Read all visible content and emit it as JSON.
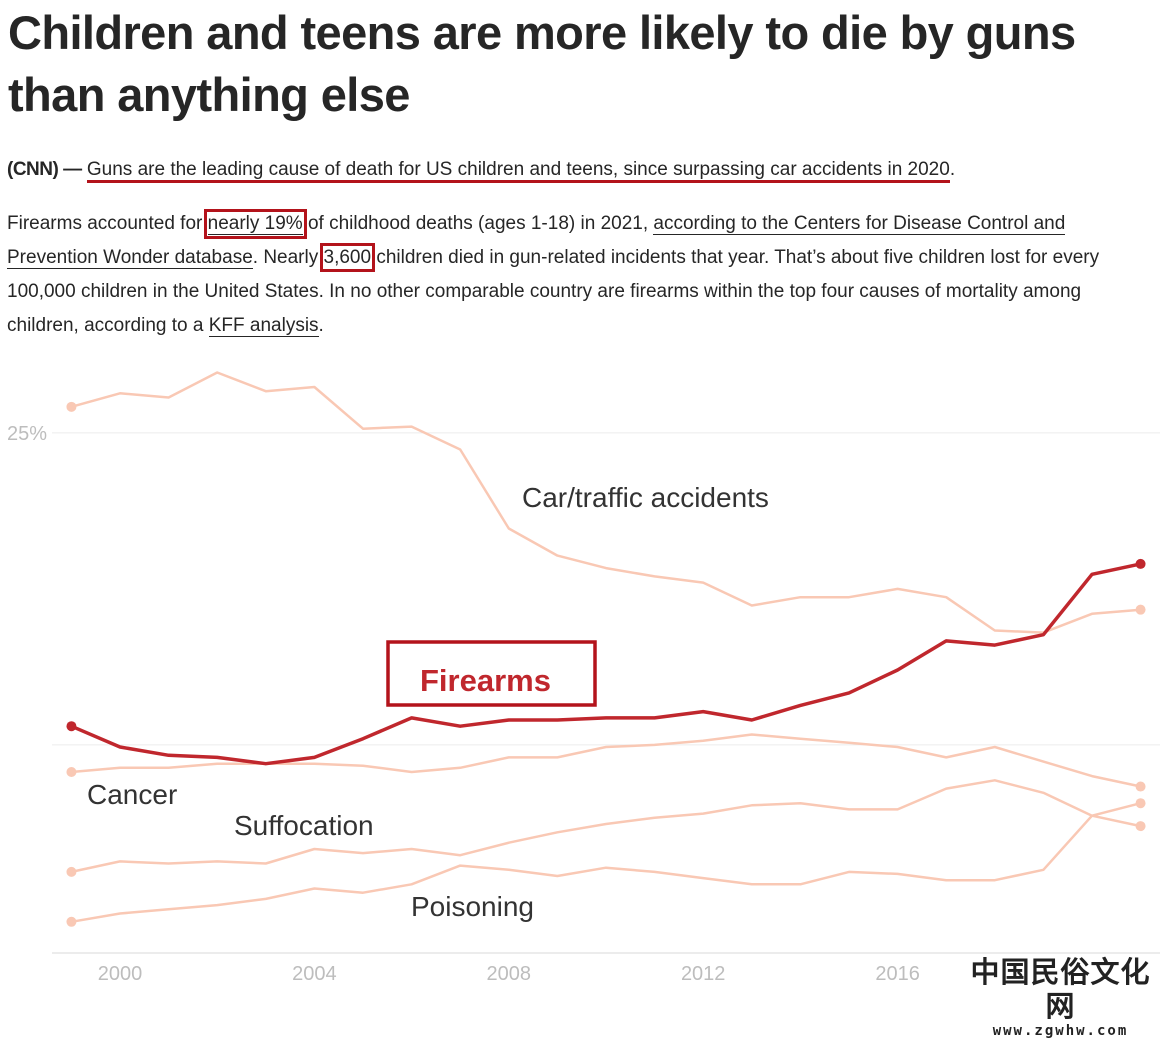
{
  "article": {
    "title": "Children and teens are more likely to die by guns than anything else",
    "paragraphs": [
      [
        "(CNN) —",
        "Guns are the leading cause of death for US children and teens, since surpassing car accidents in 2020",
        "."
      ],
      [
        "Firearms accounted for",
        "nearly 19%",
        "of childhood deaths (ages 1-18) in 2021,",
        "according to the Centers for Disease Control and Prevention Wonder database",
        ". Nearly",
        "3,600",
        "children died in gun-related incidents that year. That’s about five children lost for every 100,000 children in the United States. In no other comparable country are firearms within the top four causes of mortality among children, according to a",
        "KFF analysis",
        "."
      ]
    ]
  },
  "chart_data": {
    "type": "line",
    "x": [
      1999,
      2000,
      2001,
      2002,
      2003,
      2004,
      2005,
      2006,
      2007,
      2008,
      2009,
      2010,
      2011,
      2012,
      2013,
      2014,
      2015,
      2016,
      2017,
      2018,
      2019,
      2020,
      2021
    ],
    "xlim": [
      1998.6,
      2021.4
    ],
    "xticks": [
      2000,
      2004,
      2008,
      2012,
      2016
    ],
    "ylim": [
      0,
      28.5
    ],
    "yticks": [
      {
        "value": 10,
        "label": null
      },
      {
        "value": 25,
        "label": "25%"
      }
    ],
    "grid": true,
    "highlight": "Firearms",
    "series": [
      {
        "name": "Car/traffic accidents",
        "color": "#f9c8b4",
        "values": [
          26.25,
          26.9,
          26.7,
          27.9,
          27.0,
          27.2,
          25.2,
          25.3,
          24.2,
          20.4,
          19.1,
          18.5,
          18.1,
          17.8,
          16.7,
          17.1,
          17.1,
          17.5,
          17.1,
          15.5,
          15.4,
          16.3,
          16.5
        ]
      },
      {
        "name": "Firearms",
        "color": "#c0272d",
        "values": [
          10.9,
          9.9,
          9.5,
          9.4,
          9.1,
          9.4,
          10.3,
          11.3,
          10.9,
          11.2,
          11.2,
          11.3,
          11.3,
          11.6,
          11.2,
          11.9,
          12.5,
          13.6,
          15.0,
          14.8,
          15.3,
          18.2,
          18.7
        ]
      },
      {
        "name": "Cancer",
        "color": "#f9c8b4",
        "values": [
          8.7,
          8.9,
          8.9,
          9.1,
          9.1,
          9.1,
          9.0,
          8.7,
          8.9,
          9.4,
          9.4,
          9.9,
          10.0,
          10.2,
          10.5,
          10.3,
          10.1,
          9.9,
          9.4,
          9.9,
          9.2,
          8.5,
          8.0
        ]
      },
      {
        "name": "Suffocation",
        "color": "#f9c8b4",
        "values": [
          3.9,
          4.4,
          4.3,
          4.4,
          4.3,
          5.0,
          4.8,
          5.0,
          4.7,
          5.3,
          5.8,
          6.2,
          6.5,
          6.7,
          7.1,
          7.2,
          6.9,
          6.9,
          7.9,
          8.3,
          7.7,
          6.6,
          6.1
        ]
      },
      {
        "name": "Poisoning",
        "color": "#f9c8b4",
        "values": [
          1.5,
          1.9,
          2.1,
          2.3,
          2.6,
          3.1,
          2.9,
          3.3,
          4.2,
          4.0,
          3.7,
          4.1,
          3.9,
          3.6,
          3.3,
          3.3,
          3.9,
          3.8,
          3.5,
          3.5,
          4.0,
          6.6,
          7.2
        ]
      }
    ]
  },
  "watermark": {
    "title": "中国民俗文化网",
    "url": "www.zgwhw.com"
  }
}
